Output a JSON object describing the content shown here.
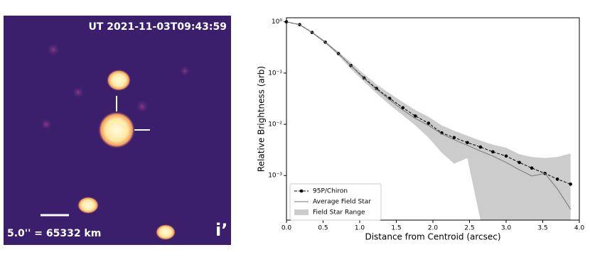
{
  "image_panel": {
    "timestamp": "UT 2021-11-03T09:43:59",
    "scale_label": "5.0'' = 65332 km",
    "filter_label": "i’"
  },
  "chart_data": {
    "type": "line",
    "xlabel": "Distance from Centroid (arcsec)",
    "ylabel": "Relative Brightness (arb)",
    "xlim": [
      0,
      4.0
    ],
    "xticks": [
      {
        "value": 0,
        "label": "0.0"
      },
      0.5,
      {
        "value": 1,
        "label": "1.0"
      },
      1.5,
      {
        "value": 2,
        "label": "2.0"
      },
      2.5,
      {
        "value": 3,
        "label": "3.0"
      },
      3.5,
      {
        "value": 4,
        "label": "4.0"
      }
    ],
    "ylim": [
      0.000135,
      1.2
    ],
    "yticks": [
      {
        "value": 0.001,
        "label": "10⁻³"
      },
      {
        "value": 0.01,
        "label": "10⁻²"
      },
      {
        "value": 0.1,
        "label": "10⁻¹"
      },
      {
        "value": 1,
        "label": "10⁰"
      }
    ],
    "log_y": true,
    "legend": "lower left",
    "x": [
      0,
      0.18,
      0.35,
      0.53,
      0.71,
      0.88,
      1.06,
      1.23,
      1.41,
      1.59,
      1.76,
      1.94,
      2.12,
      2.29,
      2.47,
      2.65,
      2.82,
      3.0,
      3.18,
      3.35,
      3.53,
      3.7,
      3.88
    ],
    "series": [
      {
        "name": "95P/Chiron",
        "color": "#000000",
        "style": "dashed-markers",
        "values": [
          1.0,
          0.88,
          0.62,
          0.4,
          0.24,
          0.14,
          0.08,
          0.05,
          0.032,
          0.021,
          0.0145,
          0.0105,
          0.0068,
          0.0055,
          0.0044,
          0.0036,
          0.0029,
          0.0024,
          0.0018,
          0.0014,
          0.0011,
          0.00085,
          0.00068
        ]
      },
      {
        "name": "Average Field Star",
        "color": "#777777",
        "style": "solid",
        "values": [
          1.0,
          0.88,
          0.62,
          0.4,
          0.24,
          0.14,
          0.078,
          0.048,
          0.03,
          0.019,
          0.013,
          0.0095,
          0.0065,
          0.005,
          0.0039,
          0.003,
          0.0024,
          0.0018,
          0.0013,
          0.00098,
          0.0011,
          0.00055,
          0.00022
        ]
      },
      {
        "name": "Field Star Range",
        "color": "#cccccc",
        "style": "band",
        "upper": [
          1.0,
          0.9,
          0.64,
          0.42,
          0.26,
          0.16,
          0.095,
          0.06,
          0.04,
          0.027,
          0.019,
          0.014,
          0.0095,
          0.0075,
          0.006,
          0.0048,
          0.004,
          0.0035,
          0.0026,
          0.0023,
          0.0022,
          0.0023,
          0.0027
        ],
        "lower": [
          1.0,
          0.86,
          0.6,
          0.38,
          0.22,
          0.12,
          0.068,
          0.04,
          0.024,
          0.015,
          0.0095,
          0.0055,
          0.0028,
          0.0017,
          0.0022,
          0.000135,
          0.000135,
          0.000135,
          0.000135,
          0.000135,
          0.000135,
          0.000135,
          0.000135
        ]
      }
    ]
  }
}
